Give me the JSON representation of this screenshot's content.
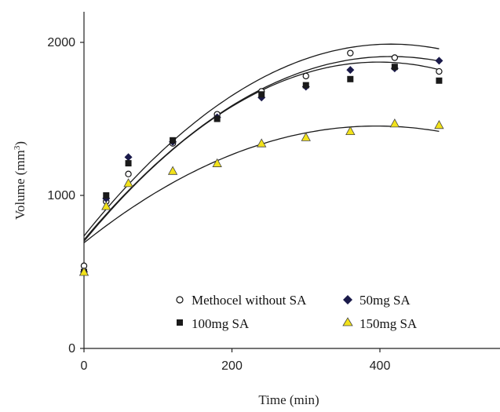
{
  "chart_data": {
    "type": "scatter",
    "title": "",
    "xlabel": "Time (min)",
    "ylabel_main": "Volume (mm",
    "ylabel_sup": "3",
    "ylabel_close": ")",
    "xlim": [
      0,
      550
    ],
    "ylim": [
      0,
      2200
    ],
    "x_ticks": [
      0,
      200,
      400
    ],
    "y_ticks": [
      0,
      1000,
      2000
    ],
    "x_tick_labels": [
      "0",
      "200",
      "400"
    ],
    "y_tick_labels": [
      "0",
      "1000",
      "2000"
    ],
    "grid": false,
    "legend_position": "lower-center",
    "series": [
      {
        "name": "Methocel without SA",
        "marker": "open-circle",
        "color": "#ffffff",
        "stroke": "#111111",
        "x": [
          0,
          30,
          60,
          120,
          180,
          240,
          300,
          360,
          420,
          480
        ],
        "y": [
          540,
          960,
          1140,
          1340,
          1530,
          1680,
          1780,
          1930,
          1900,
          1810
        ],
        "fit": [
          735,
          6.042,
          -0.00728
        ]
      },
      {
        "name": "50mg SA",
        "marker": "diamond",
        "color": "#1a1a4a",
        "stroke": "#1a1a4a",
        "x": [
          0,
          30,
          60,
          120,
          180,
          240,
          300,
          360,
          420,
          480
        ],
        "y": [
          500,
          980,
          1250,
          1350,
          1510,
          1640,
          1710,
          1820,
          1830,
          1880
        ],
        "fit": [
          710,
          5.77,
          -0.00695
        ]
      },
      {
        "name": "100mg SA",
        "marker": "square",
        "color": "#1a1a1a",
        "stroke": "#1a1a1a",
        "x": [
          0,
          30,
          60,
          120,
          180,
          240,
          300,
          360,
          420,
          480
        ],
        "y": [
          500,
          1000,
          1210,
          1360,
          1500,
          1660,
          1720,
          1760,
          1840,
          1750
        ],
        "fit": [
          700,
          5.88,
          -0.00738
        ]
      },
      {
        "name": "150mg SA",
        "marker": "triangle",
        "color": "#f2e21a",
        "stroke": "#444444",
        "x": [
          0,
          30,
          60,
          120,
          180,
          240,
          300,
          360,
          420,
          480
        ],
        "y": [
          500,
          930,
          1080,
          1160,
          1210,
          1340,
          1380,
          1420,
          1470,
          1460
        ],
        "fit": [
          690,
          3.86,
          -0.00488
        ]
      }
    ]
  }
}
